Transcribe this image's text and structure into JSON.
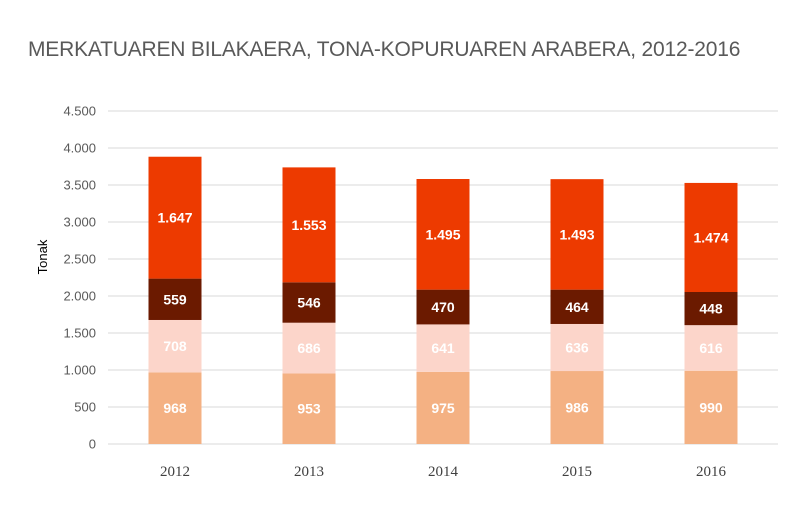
{
  "chart_data": {
    "type": "bar",
    "stacked": true,
    "title": "MERKATUAREN BILAKAERA, TONA-KOPURUAREN ARABERA, 2012-2016",
    "ylabel": "Tonak",
    "xlabel": "",
    "categories": [
      "2012",
      "2013",
      "2014",
      "2015",
      "2016"
    ],
    "ylim": [
      0,
      4500
    ],
    "yticks": [
      0,
      500,
      1000,
      1500,
      2000,
      2500,
      3000,
      3500,
      4000,
      4500
    ],
    "ytick_labels": [
      "0",
      "500",
      "1.000",
      "1.500",
      "2.000",
      "2.500",
      "3.000",
      "3.500",
      "4.000",
      "4.500"
    ],
    "grid": true,
    "legend": "none",
    "series": [
      {
        "values": [
          968,
          953,
          975,
          986,
          990
        ],
        "labels": [
          "968",
          "953",
          "975",
          "986",
          "990"
        ],
        "color": "#F4B183"
      },
      {
        "values": [
          708,
          686,
          641,
          636,
          616
        ],
        "labels": [
          "708",
          "686",
          "641",
          "636",
          "616"
        ],
        "color": "#FCD5CA"
      },
      {
        "values": [
          559,
          546,
          470,
          464,
          448
        ],
        "labels": [
          "559",
          "546",
          "470",
          "464",
          "448"
        ],
        "color": "#6B1A00"
      },
      {
        "values": [
          1647,
          1553,
          1495,
          1493,
          1474
        ],
        "labels": [
          "1.647",
          "1.553",
          "1.495",
          "1.493",
          "1.474"
        ],
        "color": "#ED3A00"
      }
    ]
  }
}
